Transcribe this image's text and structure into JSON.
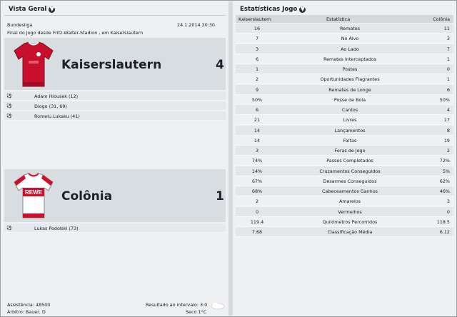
{
  "overview": {
    "title": "Vista Geral",
    "competition": "Bundesliga",
    "datetime": "24.1.2014 20:30",
    "venue": "Final do Jogo desde Fritz-Walter-Stadion , em Kaiserslautern",
    "home": {
      "name": "Kaiserslautern",
      "score": "4",
      "scorers": [
        "Adam Hlousek (12)",
        "Diogo (31, 69)",
        "Romelu Lukaku (41)"
      ]
    },
    "away": {
      "name": "Colônia",
      "score": "1",
      "shirt_text": "REWE",
      "scorers": [
        "Lukas Podolski (73)"
      ]
    },
    "attendance": "Assistência: 48500",
    "referee": "Árbitro: Bauer, D",
    "halftime": "Resultado ao intervalo: 3:0",
    "weather": "Seco 1°C"
  },
  "stats": {
    "title": "Estatísticas Jogo",
    "header_home": "Kaiserslautern",
    "header_label": "Estatística",
    "header_away": "Colônia",
    "rows": [
      {
        "home": "16",
        "label": "Remates",
        "away": "11"
      },
      {
        "home": "7",
        "label": "No Alvo",
        "away": "3"
      },
      {
        "home": "3",
        "label": "Ao Lado",
        "away": "7"
      },
      {
        "home": "6",
        "label": "Remates Interceptados",
        "away": "1"
      },
      {
        "home": "1",
        "label": "Postes",
        "away": "0"
      },
      {
        "home": "2",
        "label": "Oportunidades Flagrantes",
        "away": "1"
      },
      {
        "home": "9",
        "label": "Remates de Longe",
        "away": "6"
      },
      {
        "home": "50%",
        "label": "Posse de Bola",
        "away": "50%"
      },
      {
        "home": "6",
        "label": "Cantos",
        "away": "4"
      },
      {
        "home": "21",
        "label": "Livres",
        "away": "17"
      },
      {
        "home": "14",
        "label": "Lançamentos",
        "away": "8"
      },
      {
        "home": "14",
        "label": "Faltas",
        "away": "19"
      },
      {
        "home": "3",
        "label": "Foras de Jogo",
        "away": "2"
      },
      {
        "home": "74%",
        "label": "Passes Completados",
        "away": "72%"
      },
      {
        "home": "14%",
        "label": "Cruzamentos Conseguidos",
        "away": "5%"
      },
      {
        "home": "67%",
        "label": "Desarmes Conseguidos",
        "away": "62%"
      },
      {
        "home": "68%",
        "label": "Cabeceamentos Ganhos",
        "away": "46%"
      },
      {
        "home": "2",
        "label": "Amarelos",
        "away": "3"
      },
      {
        "home": "0",
        "label": "Vermelhos",
        "away": "0"
      },
      {
        "home": "119.4",
        "label": "Quilómetros Percorridos",
        "away": "118.5"
      },
      {
        "home": "7.68",
        "label": "Classificação Média",
        "away": "6.12"
      }
    ]
  },
  "colors": {
    "home_kit": "#c8102e",
    "away_kit": "#ffffff",
    "away_trim": "#d0102a"
  }
}
